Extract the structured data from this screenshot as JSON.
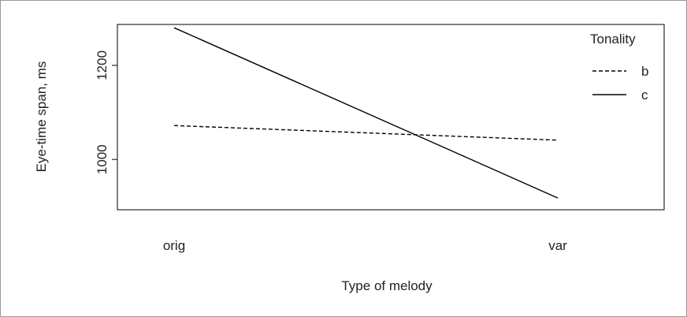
{
  "chart_data": {
    "type": "line",
    "title": "",
    "xlabel": "Type of melody",
    "ylabel": "Eye-time span, ms",
    "categories": [
      "orig",
      "var"
    ],
    "yticks": [
      1000,
      1200
    ],
    "ylim": [
      893,
      1287
    ],
    "grid": false,
    "legend": {
      "title": "Tonality",
      "placement": "top-right"
    },
    "series": [
      {
        "name": "b",
        "values": [
          1072,
          1041
        ],
        "line_style": "dashed",
        "color": "#000000"
      },
      {
        "name": "c",
        "values": [
          1280,
          918
        ],
        "line_style": "solid",
        "color": "#000000"
      }
    ]
  }
}
